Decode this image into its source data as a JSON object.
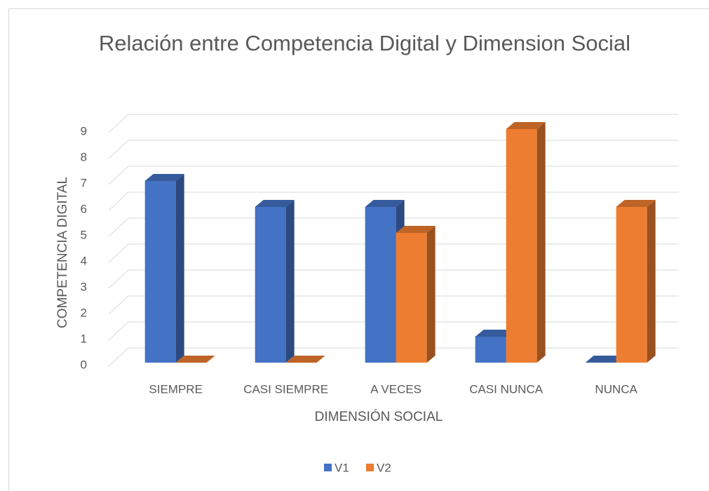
{
  "chart_data": {
    "type": "bar3d",
    "title": "Relación entre Competencia Digital y Dimension Social",
    "x_label": "DIMENSIÓN SOCIAL",
    "y_label": "COMPETENCIA DIGITAL",
    "categories": [
      "SIEMPRE",
      "CASI SIEMPRE",
      "A VECES",
      "CASI NUNCA",
      "NUNCA"
    ],
    "series": [
      {
        "name": "V1",
        "color": "#4472c4",
        "values": [
          7,
          6,
          6,
          1,
          0
        ]
      },
      {
        "name": "V2",
        "color": "#ed7d31",
        "values": [
          0,
          0,
          5,
          9,
          6
        ]
      }
    ],
    "ylim": [
      0,
      9
    ],
    "yticks": [
      0,
      1,
      2,
      3,
      4,
      5,
      6,
      7,
      8,
      9
    ],
    "grid": true,
    "legend": "bottom"
  }
}
